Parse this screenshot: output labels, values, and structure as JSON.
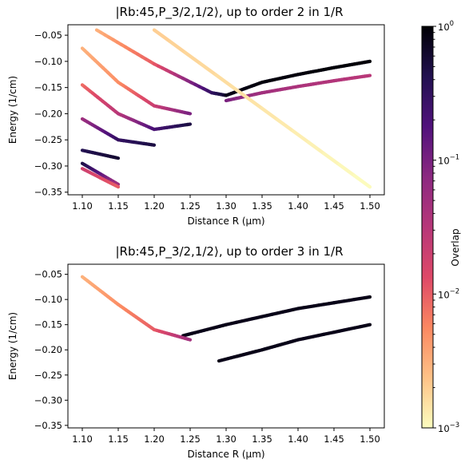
{
  "colorbar": {
    "label": "Overlap",
    "scale": "log",
    "range": [
      0.001,
      1
    ],
    "ticks": [
      {
        "value": 1,
        "label": "10^0"
      },
      {
        "value": 0.1,
        "label": "10^-1"
      },
      {
        "value": 0.01,
        "label": "10^-2"
      },
      {
        "value": 0.001,
        "label": "10^-3"
      }
    ],
    "colormap": "magma_r",
    "stops": [
      "#fcfdbf",
      "#fec287",
      "#fb8861",
      "#de4968",
      "#b73779",
      "#8c2981",
      "#51127c",
      "#221150",
      "#000004"
    ]
  },
  "chart_data": [
    {
      "type": "scatter",
      "title": "|Rb:45,P_3/2,1/2⟩, up to order 2 in 1/R",
      "xlabel": "Distance R (μm)",
      "ylabel": "Energy (1/cm)",
      "xlim": [
        1.08,
        1.52
      ],
      "ylim": [
        -0.355,
        -0.03
      ],
      "xticks": [
        "1.10",
        "1.15",
        "1.20",
        "1.25",
        "1.30",
        "1.35",
        "1.40",
        "1.45",
        "1.50"
      ],
      "yticks": [
        "−0.05",
        "−0.10",
        "−0.15",
        "−0.20",
        "−0.25",
        "−0.30",
        "−0.35"
      ],
      "color_by": "Overlap",
      "series": [
        {
          "x": [
            1.12,
            1.2,
            1.28,
            1.3
          ],
          "y": [
            -0.04,
            -0.105,
            -0.16,
            -0.165
          ],
          "overlap": [
            0.003,
            0.01,
            0.3,
            0.6
          ]
        },
        {
          "x": [
            1.3,
            1.35,
            1.4,
            1.45,
            1.5
          ],
          "y": [
            -0.165,
            -0.14,
            -0.125,
            -0.112,
            -0.1
          ],
          "overlap": [
            0.8,
            0.9,
            0.9,
            0.95,
            0.95
          ]
        },
        {
          "x": [
            1.3,
            1.35,
            1.4,
            1.45,
            1.5
          ],
          "y": [
            -0.175,
            -0.16,
            -0.148,
            -0.137,
            -0.127
          ],
          "overlap": [
            0.1,
            0.05,
            0.04,
            0.035,
            0.03
          ]
        },
        {
          "x": [
            1.1,
            1.15,
            1.2,
            1.25
          ],
          "y": [
            -0.075,
            -0.14,
            -0.185,
            -0.2
          ],
          "overlap": [
            0.003,
            0.005,
            0.02,
            0.1
          ]
        },
        {
          "x": [
            1.1,
            1.15,
            1.2,
            1.25
          ],
          "y": [
            -0.145,
            -0.2,
            -0.23,
            -0.22
          ],
          "overlap": [
            0.008,
            0.03,
            0.2,
            0.5
          ]
        },
        {
          "x": [
            1.1,
            1.15,
            1.2
          ],
          "y": [
            -0.21,
            -0.25,
            -0.26
          ],
          "overlap": [
            0.05,
            0.3,
            0.5
          ]
        },
        {
          "x": [
            1.1,
            1.15
          ],
          "y": [
            -0.27,
            -0.285
          ],
          "overlap": [
            0.4,
            0.6
          ]
        },
        {
          "x": [
            1.1,
            1.15
          ],
          "y": [
            -0.295,
            -0.335
          ],
          "overlap": [
            0.5,
            0.05
          ]
        },
        {
          "x": [
            1.1,
            1.15
          ],
          "y": [
            -0.305,
            -0.34
          ],
          "overlap": [
            0.02,
            0.01
          ]
        },
        {
          "x": [
            1.2,
            1.5
          ],
          "y": [
            -0.04,
            -0.34
          ],
          "overlap": [
            0.002,
            0.001
          ]
        },
        {
          "x": [
            1.2,
            1.5
          ],
          "y": [
            -0.04,
            -0.34
          ],
          "overlap": [
            0.002,
            0.001
          ]
        }
      ]
    },
    {
      "type": "scatter",
      "title": "|Rb:45,P_3/2,1/2⟩, up to order 3 in 1/R",
      "xlabel": "Distance R (μm)",
      "ylabel": "Energy (1/cm)",
      "xlim": [
        1.08,
        1.52
      ],
      "ylim": [
        -0.355,
        -0.03
      ],
      "xticks": [
        "1.10",
        "1.15",
        "1.20",
        "1.25",
        "1.30",
        "1.35",
        "1.40",
        "1.45",
        "1.50"
      ],
      "yticks": [
        "−0.05",
        "−0.10",
        "−0.15",
        "−0.20",
        "−0.25",
        "−0.30",
        "−0.35"
      ],
      "color_by": "Overlap",
      "series": [
        {
          "x": [
            1.24,
            1.3,
            1.4,
            1.5
          ],
          "y": [
            -0.172,
            -0.15,
            -0.118,
            -0.095
          ],
          "overlap": [
            0.8,
            0.8,
            0.8,
            0.8
          ]
        },
        {
          "x": [
            1.29,
            1.35,
            1.4,
            1.5
          ],
          "y": [
            -0.222,
            -0.2,
            -0.18,
            -0.15
          ],
          "overlap": [
            0.8,
            0.8,
            0.8,
            0.8
          ]
        },
        {
          "x": [
            1.1,
            1.15,
            1.2,
            1.25
          ],
          "y": [
            -0.055,
            -0.11,
            -0.16,
            -0.18
          ],
          "overlap": [
            0.003,
            0.005,
            0.01,
            0.05
          ]
        }
      ]
    }
  ]
}
